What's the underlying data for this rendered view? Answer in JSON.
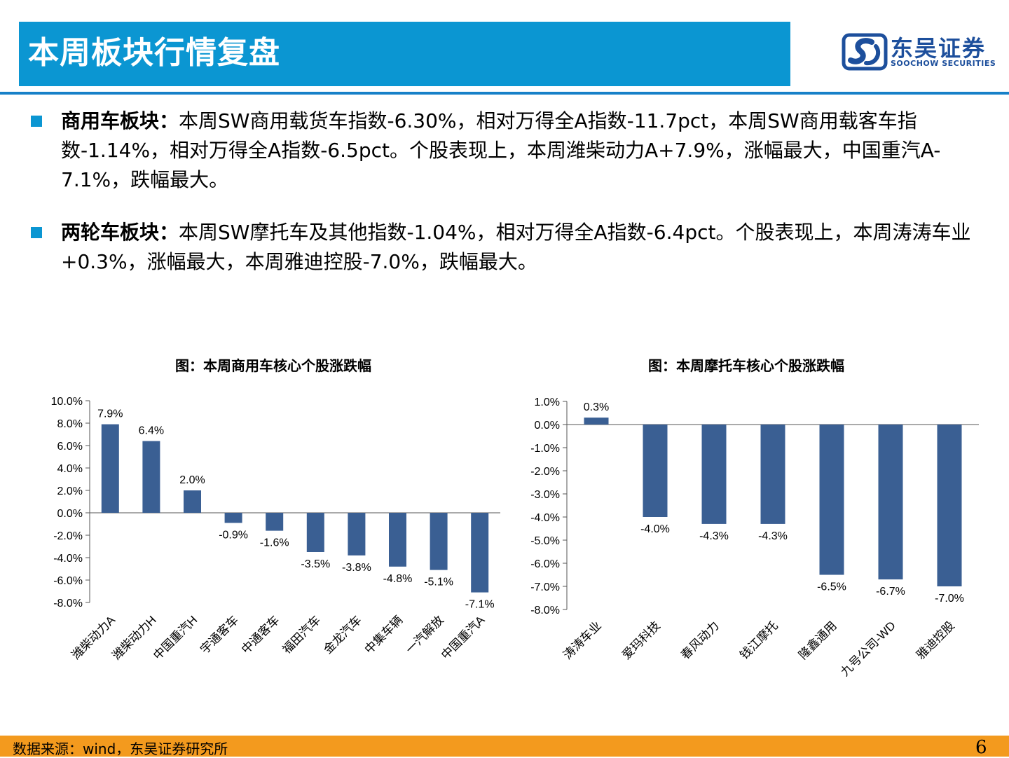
{
  "header": {
    "title": "本周板块行情复盘",
    "logo_cn": "东吴证券",
    "logo_en": "SOOCHOW SECURITIES",
    "bar_color": "#0b96d2"
  },
  "bullets": [
    {
      "label": "商用车板块：",
      "text": "本周SW商用载货车指数-6.30%，相对万得全A指数-11.7pct，本周SW商用载客车指数-1.14%，相对万得全A指数-6.5pct。个股表现上，本周潍柴动力A+7.9%，涨幅最大，中国重汽A-7.1%，跌幅最大。"
    },
    {
      "label": "两轮车板块：",
      "text": "本周SW摩托车及其他指数-1.04%，相对万得全A指数-6.4pct。个股表现上，本周涛涛车业+0.3%，涨幅最大，本周雅迪控股-7.0%，跌幅最大。"
    }
  ],
  "chart_data": [
    {
      "type": "bar",
      "title": "图：本周商用车核心个股涨跌幅",
      "categories": [
        "潍柴动力A",
        "潍柴动力H",
        "中国重汽H",
        "宇通客车",
        "中通客车",
        "福田汽车",
        "金龙汽车",
        "中集车辆",
        "一汽解放",
        "中国重汽A"
      ],
      "values": [
        7.9,
        6.4,
        2.0,
        -0.9,
        -1.6,
        -3.5,
        -3.8,
        -4.8,
        -5.1,
        -7.1
      ],
      "labels": [
        "7.9%",
        "6.4%",
        "2.0%",
        "-0.9%",
        "-1.6%",
        "-3.5%",
        "-3.8%",
        "-4.8%",
        "-5.1%",
        "-7.1%"
      ],
      "yticks": [
        "10.0%",
        "8.0%",
        "6.0%",
        "4.0%",
        "2.0%",
        "0.0%",
        "-2.0%",
        "-4.0%",
        "-6.0%",
        "-8.0%"
      ],
      "ylim": [
        -8,
        10
      ],
      "bar_color": "#3a5f93"
    },
    {
      "type": "bar",
      "title": "图：本周摩托车核心个股涨跌幅",
      "categories": [
        "涛涛车业",
        "爱玛科技",
        "春风动力",
        "钱江摩托",
        "隆鑫通用",
        "九号公司-WD",
        "雅迪控股"
      ],
      "values": [
        0.3,
        -4.0,
        -4.3,
        -4.3,
        -6.5,
        -6.7,
        -7.0
      ],
      "labels": [
        "0.3%",
        "-4.0%",
        "-4.3%",
        "-4.3%",
        "-6.5%",
        "-6.7%",
        "-7.0%"
      ],
      "yticks": [
        "1.0%",
        "0.0%",
        "-1.0%",
        "-2.0%",
        "-3.0%",
        "-4.0%",
        "-5.0%",
        "-6.0%",
        "-7.0%",
        "-8.0%"
      ],
      "ylim": [
        -8,
        1
      ],
      "bar_color": "#3a5f93"
    }
  ],
  "footer": {
    "source": "数据来源：wind，东吴证券研究所",
    "page": "6",
    "bar_color": "#f39a1e"
  }
}
